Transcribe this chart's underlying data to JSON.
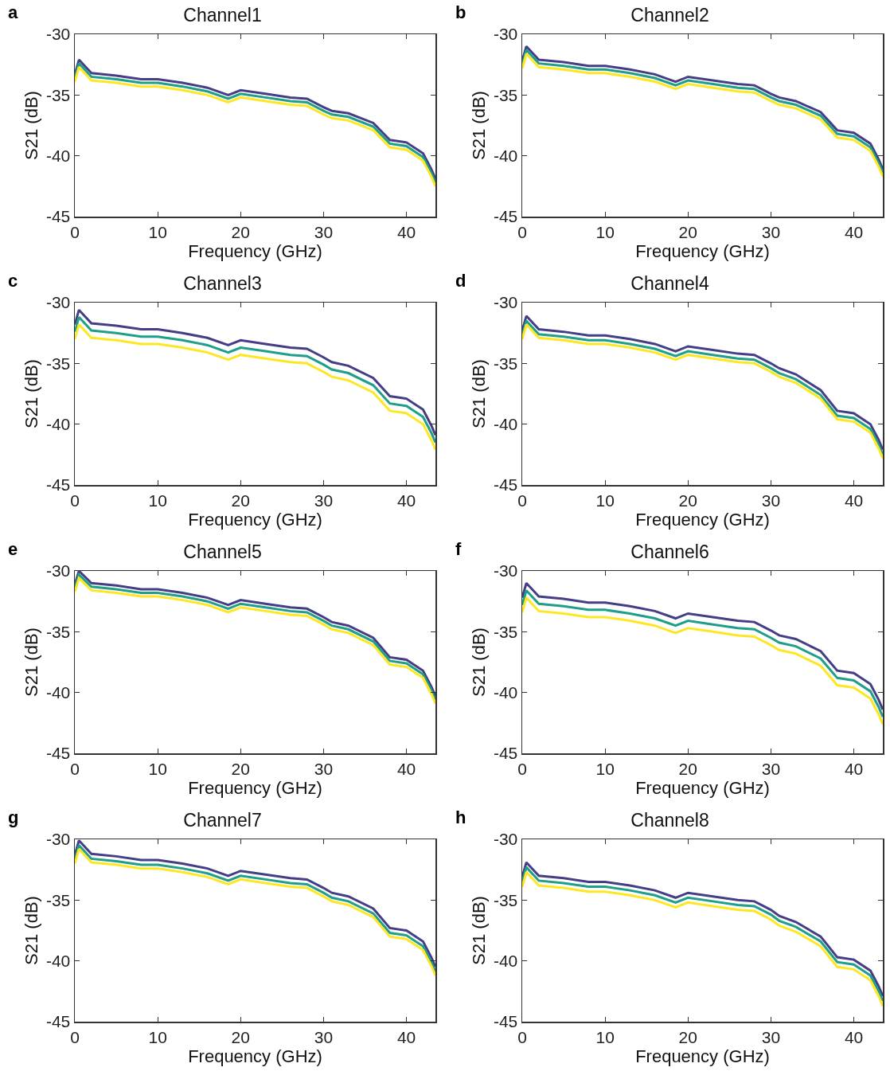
{
  "chart_data": [
    {
      "type": "line",
      "title": "Channel1",
      "xlabel": "Frequency (GHz)",
      "ylabel": "S21 (dB)",
      "annotations": [
        "a"
      ],
      "xlim": [
        0,
        43.5
      ],
      "xticks": [
        0,
        10,
        20,
        30,
        40
      ],
      "ylim": [
        -45,
        -30
      ],
      "yticks": [
        -45,
        -40,
        -35,
        -30
      ],
      "grid": false,
      "x": [
        0,
        0.5,
        2,
        5,
        8,
        10,
        13,
        16,
        18.5,
        20,
        23,
        26,
        28,
        30,
        31,
        33,
        36,
        38,
        40,
        42,
        43,
        43.5
      ],
      "series": [
        {
          "color": "#433e85",
          "values": [
            -33.3,
            -32.1,
            -33.2,
            -33.4,
            -33.7,
            -33.7,
            -34.0,
            -34.4,
            -35.0,
            -34.6,
            -34.9,
            -35.2,
            -35.3,
            -36.0,
            -36.3,
            -36.5,
            -37.3,
            -38.7,
            -38.9,
            -39.8,
            -41.1,
            -41.9
          ]
        },
        {
          "color": "#1f9e89",
          "values": [
            -33.6,
            -32.4,
            -33.5,
            -33.7,
            -34.0,
            -34.0,
            -34.3,
            -34.7,
            -35.3,
            -34.9,
            -35.2,
            -35.5,
            -35.6,
            -36.3,
            -36.6,
            -36.8,
            -37.6,
            -39.0,
            -39.2,
            -40.1,
            -41.4,
            -42.2
          ]
        },
        {
          "color": "#fde725",
          "values": [
            -33.9,
            -32.7,
            -33.8,
            -34.0,
            -34.3,
            -34.3,
            -34.6,
            -35.0,
            -35.6,
            -35.2,
            -35.5,
            -35.8,
            -35.9,
            -36.6,
            -36.9,
            -37.1,
            -37.9,
            -39.3,
            -39.5,
            -40.4,
            -41.7,
            -42.5
          ]
        }
      ]
    },
    {
      "type": "line",
      "title": "Channel2",
      "xlabel": "Frequency (GHz)",
      "ylabel": "S21 (dB)",
      "annotations": [
        "b"
      ],
      "xlim": [
        0,
        43.5
      ],
      "xticks": [
        0,
        10,
        20,
        30,
        40
      ],
      "ylim": [
        -45,
        -30
      ],
      "yticks": [
        -45,
        -40,
        -35,
        -30
      ],
      "grid": false,
      "x": [
        0,
        0.5,
        2,
        5,
        8,
        10,
        13,
        16,
        18.5,
        20,
        23,
        26,
        28,
        30,
        31,
        33,
        36,
        38,
        40,
        42,
        43,
        43.5
      ],
      "series": [
        {
          "color": "#433e85",
          "values": [
            -32.2,
            -31.0,
            -32.1,
            -32.3,
            -32.6,
            -32.6,
            -32.9,
            -33.3,
            -33.9,
            -33.5,
            -33.8,
            -34.1,
            -34.2,
            -34.9,
            -35.2,
            -35.5,
            -36.4,
            -37.9,
            -38.1,
            -39.0,
            -40.3,
            -41.1
          ]
        },
        {
          "color": "#1f9e89",
          "values": [
            -32.5,
            -31.3,
            -32.4,
            -32.6,
            -32.9,
            -32.9,
            -33.2,
            -33.6,
            -34.2,
            -33.8,
            -34.1,
            -34.4,
            -34.5,
            -35.2,
            -35.5,
            -35.8,
            -36.7,
            -38.2,
            -38.4,
            -39.3,
            -40.6,
            -41.4
          ]
        },
        {
          "color": "#fde725",
          "values": [
            -32.8,
            -31.6,
            -32.7,
            -32.9,
            -33.2,
            -33.2,
            -33.5,
            -33.9,
            -34.5,
            -34.1,
            -34.4,
            -34.7,
            -34.8,
            -35.5,
            -35.8,
            -36.1,
            -37.0,
            -38.5,
            -38.7,
            -39.6,
            -40.9,
            -41.7
          ]
        }
      ]
    },
    {
      "type": "line",
      "title": "Channel3",
      "xlabel": "Frequency (GHz)",
      "ylabel": "S21 (dB)",
      "annotations": [
        "c"
      ],
      "xlim": [
        0,
        43.5
      ],
      "xticks": [
        0,
        10,
        20,
        30,
        40
      ],
      "ylim": [
        -45,
        -30
      ],
      "yticks": [
        -45,
        -40,
        -35,
        -30
      ],
      "grid": false,
      "x": [
        0,
        0.5,
        2,
        5,
        8,
        10,
        13,
        16,
        18.5,
        20,
        23,
        26,
        28,
        30,
        31,
        33,
        36,
        38,
        40,
        42,
        43,
        43.5
      ],
      "series": [
        {
          "color": "#433e85",
          "values": [
            -31.8,
            -30.6,
            -31.7,
            -31.9,
            -32.2,
            -32.2,
            -32.5,
            -32.9,
            -33.5,
            -33.1,
            -33.4,
            -33.7,
            -33.8,
            -34.5,
            -34.9,
            -35.2,
            -36.2,
            -37.7,
            -37.9,
            -38.8,
            -40.1,
            -40.9
          ]
        },
        {
          "color": "#1f9e89",
          "values": [
            -32.4,
            -31.2,
            -32.3,
            -32.5,
            -32.8,
            -32.8,
            -33.1,
            -33.5,
            -34.1,
            -33.7,
            -34.0,
            -34.3,
            -34.4,
            -35.1,
            -35.5,
            -35.8,
            -36.8,
            -38.3,
            -38.5,
            -39.4,
            -40.7,
            -41.5
          ]
        },
        {
          "color": "#fde725",
          "values": [
            -33.0,
            -31.8,
            -32.9,
            -33.1,
            -33.4,
            -33.4,
            -33.7,
            -34.1,
            -34.7,
            -34.3,
            -34.6,
            -34.9,
            -35.0,
            -35.7,
            -36.1,
            -36.4,
            -37.4,
            -38.9,
            -39.1,
            -40.0,
            -41.3,
            -42.1
          ]
        }
      ]
    },
    {
      "type": "line",
      "title": "Channel4",
      "xlabel": "Frequency (GHz)",
      "ylabel": "S21 (dB)",
      "annotations": [
        "d"
      ],
      "xlim": [
        0,
        43.5
      ],
      "xticks": [
        0,
        10,
        20,
        30,
        40
      ],
      "ylim": [
        -45,
        -30
      ],
      "yticks": [
        -45,
        -40,
        -35,
        -30
      ],
      "grid": false,
      "x": [
        0,
        0.5,
        2,
        5,
        8,
        10,
        13,
        16,
        18.5,
        20,
        23,
        26,
        28,
        30,
        31,
        33,
        36,
        38,
        40,
        42,
        43,
        43.5
      ],
      "series": [
        {
          "color": "#433e85",
          "values": [
            -32.3,
            -31.1,
            -32.2,
            -32.4,
            -32.7,
            -32.7,
            -33.0,
            -33.4,
            -34.0,
            -33.6,
            -33.9,
            -34.2,
            -34.3,
            -35.0,
            -35.4,
            -35.9,
            -37.2,
            -38.9,
            -39.1,
            -40.0,
            -41.3,
            -42.1
          ]
        },
        {
          "color": "#1f9e89",
          "values": [
            -32.7,
            -31.5,
            -32.6,
            -32.8,
            -33.1,
            -33.1,
            -33.4,
            -33.8,
            -34.4,
            -34.0,
            -34.3,
            -34.6,
            -34.7,
            -35.4,
            -35.8,
            -36.3,
            -37.6,
            -39.3,
            -39.5,
            -40.4,
            -41.7,
            -42.5
          ]
        },
        {
          "color": "#fde725",
          "values": [
            -33.0,
            -31.8,
            -32.9,
            -33.1,
            -33.4,
            -33.4,
            -33.7,
            -34.1,
            -34.7,
            -34.3,
            -34.6,
            -34.9,
            -35.0,
            -35.7,
            -36.1,
            -36.6,
            -37.9,
            -39.6,
            -39.8,
            -40.7,
            -42.0,
            -42.8
          ]
        }
      ]
    },
    {
      "type": "line",
      "title": "Channel5",
      "xlabel": "Frequency (GHz)",
      "ylabel": "S21 (dB)",
      "annotations": [
        "e"
      ],
      "xlim": [
        0,
        43.5
      ],
      "xticks": [
        0,
        10,
        20,
        30,
        40
      ],
      "ylim": [
        -45,
        -30
      ],
      "yticks": [
        -45,
        -40,
        -35,
        -30
      ],
      "grid": false,
      "x": [
        0,
        0.5,
        2,
        5,
        8,
        10,
        13,
        16,
        18.5,
        20,
        23,
        26,
        28,
        30,
        31,
        33,
        36,
        38,
        40,
        42,
        43,
        43.5
      ],
      "series": [
        {
          "color": "#433e85",
          "values": [
            -31.1,
            -30.0,
            -31.0,
            -31.2,
            -31.5,
            -31.5,
            -31.8,
            -32.2,
            -32.8,
            -32.4,
            -32.7,
            -33.0,
            -33.1,
            -33.8,
            -34.2,
            -34.5,
            -35.5,
            -37.1,
            -37.3,
            -38.2,
            -39.5,
            -40.3
          ]
        },
        {
          "color": "#1f9e89",
          "values": [
            -31.4,
            -30.3,
            -31.3,
            -31.5,
            -31.8,
            -31.8,
            -32.1,
            -32.5,
            -33.1,
            -32.7,
            -33.0,
            -33.3,
            -33.4,
            -34.1,
            -34.5,
            -34.8,
            -35.8,
            -37.4,
            -37.6,
            -38.5,
            -39.8,
            -40.6
          ]
        },
        {
          "color": "#fde725",
          "values": [
            -31.7,
            -30.6,
            -31.6,
            -31.8,
            -32.1,
            -32.1,
            -32.4,
            -32.8,
            -33.4,
            -33.0,
            -33.3,
            -33.6,
            -33.7,
            -34.4,
            -34.8,
            -35.1,
            -36.1,
            -37.7,
            -37.9,
            -38.8,
            -40.1,
            -40.9
          ]
        }
      ]
    },
    {
      "type": "line",
      "title": "Channel6",
      "xlabel": "Frequency (GHz)",
      "ylabel": "S21 (dB)",
      "annotations": [
        "f"
      ],
      "xlim": [
        0,
        43.5
      ],
      "xticks": [
        0,
        10,
        20,
        30,
        40
      ],
      "ylim": [
        -45,
        -30
      ],
      "yticks": [
        -45,
        -40,
        -35,
        -30
      ],
      "grid": false,
      "x": [
        0,
        0.5,
        2,
        5,
        8,
        10,
        13,
        16,
        18.5,
        20,
        23,
        26,
        28,
        30,
        31,
        33,
        36,
        38,
        40,
        42,
        43,
        43.5
      ],
      "series": [
        {
          "color": "#433e85",
          "values": [
            -32.2,
            -31.0,
            -32.1,
            -32.3,
            -32.6,
            -32.6,
            -32.9,
            -33.3,
            -33.9,
            -33.5,
            -33.8,
            -34.1,
            -34.2,
            -34.9,
            -35.3,
            -35.6,
            -36.6,
            -38.2,
            -38.4,
            -39.3,
            -40.6,
            -41.4
          ]
        },
        {
          "color": "#1f9e89",
          "values": [
            -32.8,
            -31.6,
            -32.7,
            -32.9,
            -33.2,
            -33.2,
            -33.5,
            -33.9,
            -34.5,
            -34.1,
            -34.4,
            -34.7,
            -34.8,
            -35.5,
            -35.9,
            -36.2,
            -37.2,
            -38.8,
            -39.0,
            -39.9,
            -41.2,
            -42.0
          ]
        },
        {
          "color": "#fde725",
          "values": [
            -33.4,
            -32.2,
            -33.3,
            -33.5,
            -33.8,
            -33.8,
            -34.1,
            -34.5,
            -35.1,
            -34.7,
            -35.0,
            -35.3,
            -35.4,
            -36.1,
            -36.5,
            -36.8,
            -37.8,
            -39.4,
            -39.6,
            -40.5,
            -41.8,
            -42.6
          ]
        }
      ]
    },
    {
      "type": "line",
      "title": "Channel7",
      "xlabel": "Frequency (GHz)",
      "ylabel": "S21 (dB)",
      "annotations": [
        "g"
      ],
      "xlim": [
        0,
        43.5
      ],
      "xticks": [
        0,
        10,
        20,
        30,
        40
      ],
      "ylim": [
        -45,
        -30
      ],
      "yticks": [
        -45,
        -40,
        -35,
        -30
      ],
      "grid": false,
      "x": [
        0,
        0.5,
        2,
        5,
        8,
        10,
        13,
        16,
        18.5,
        20,
        23,
        26,
        28,
        30,
        31,
        33,
        36,
        38,
        40,
        42,
        43,
        43.5
      ],
      "series": [
        {
          "color": "#433e85",
          "values": [
            -31.3,
            -30.1,
            -31.2,
            -31.4,
            -31.7,
            -31.7,
            -32.0,
            -32.4,
            -33.0,
            -32.6,
            -32.9,
            -33.2,
            -33.3,
            -34.0,
            -34.4,
            -34.7,
            -35.7,
            -37.3,
            -37.5,
            -38.4,
            -39.7,
            -40.5
          ]
        },
        {
          "color": "#1f9e89",
          "values": [
            -31.7,
            -30.5,
            -31.6,
            -31.8,
            -32.1,
            -32.1,
            -32.4,
            -32.8,
            -33.4,
            -33.0,
            -33.3,
            -33.6,
            -33.7,
            -34.4,
            -34.8,
            -35.1,
            -36.1,
            -37.7,
            -37.9,
            -38.8,
            -40.1,
            -40.9
          ]
        },
        {
          "color": "#fde725",
          "values": [
            -32.0,
            -30.8,
            -31.9,
            -32.1,
            -32.4,
            -32.4,
            -32.7,
            -33.1,
            -33.7,
            -33.3,
            -33.6,
            -33.9,
            -34.0,
            -34.7,
            -35.1,
            -35.4,
            -36.4,
            -38.0,
            -38.2,
            -39.1,
            -40.4,
            -41.2
          ]
        }
      ]
    },
    {
      "type": "line",
      "title": "Channel8",
      "xlabel": "Frequency (GHz)",
      "ylabel": "S21 (dB)",
      "annotations": [
        "h"
      ],
      "xlim": [
        0,
        43.5
      ],
      "xticks": [
        0,
        10,
        20,
        30,
        40
      ],
      "ylim": [
        -45,
        -30
      ],
      "yticks": [
        -45,
        -40,
        -35,
        -30
      ],
      "grid": false,
      "x": [
        0,
        0.5,
        2,
        5,
        8,
        10,
        13,
        16,
        18.5,
        20,
        23,
        26,
        28,
        30,
        31,
        33,
        36,
        38,
        40,
        42,
        43,
        43.5
      ],
      "series": [
        {
          "color": "#433e85",
          "values": [
            -33.1,
            -31.9,
            -33.0,
            -33.2,
            -33.5,
            -33.5,
            -33.8,
            -34.2,
            -34.8,
            -34.4,
            -34.7,
            -35.0,
            -35.1,
            -35.8,
            -36.3,
            -36.8,
            -38.0,
            -39.7,
            -39.9,
            -40.8,
            -42.1,
            -42.9
          ]
        },
        {
          "color": "#1f9e89",
          "values": [
            -33.5,
            -32.3,
            -33.4,
            -33.6,
            -33.9,
            -33.9,
            -34.2,
            -34.6,
            -35.2,
            -34.8,
            -35.1,
            -35.4,
            -35.5,
            -36.2,
            -36.7,
            -37.2,
            -38.4,
            -40.1,
            -40.3,
            -41.2,
            -42.5,
            -43.3
          ]
        },
        {
          "color": "#fde725",
          "values": [
            -33.9,
            -32.7,
            -33.8,
            -34.0,
            -34.3,
            -34.3,
            -34.6,
            -35.0,
            -35.6,
            -35.2,
            -35.5,
            -35.8,
            -35.9,
            -36.6,
            -37.1,
            -37.6,
            -38.8,
            -40.5,
            -40.7,
            -41.6,
            -42.9,
            -43.7
          ]
        }
      ]
    }
  ]
}
